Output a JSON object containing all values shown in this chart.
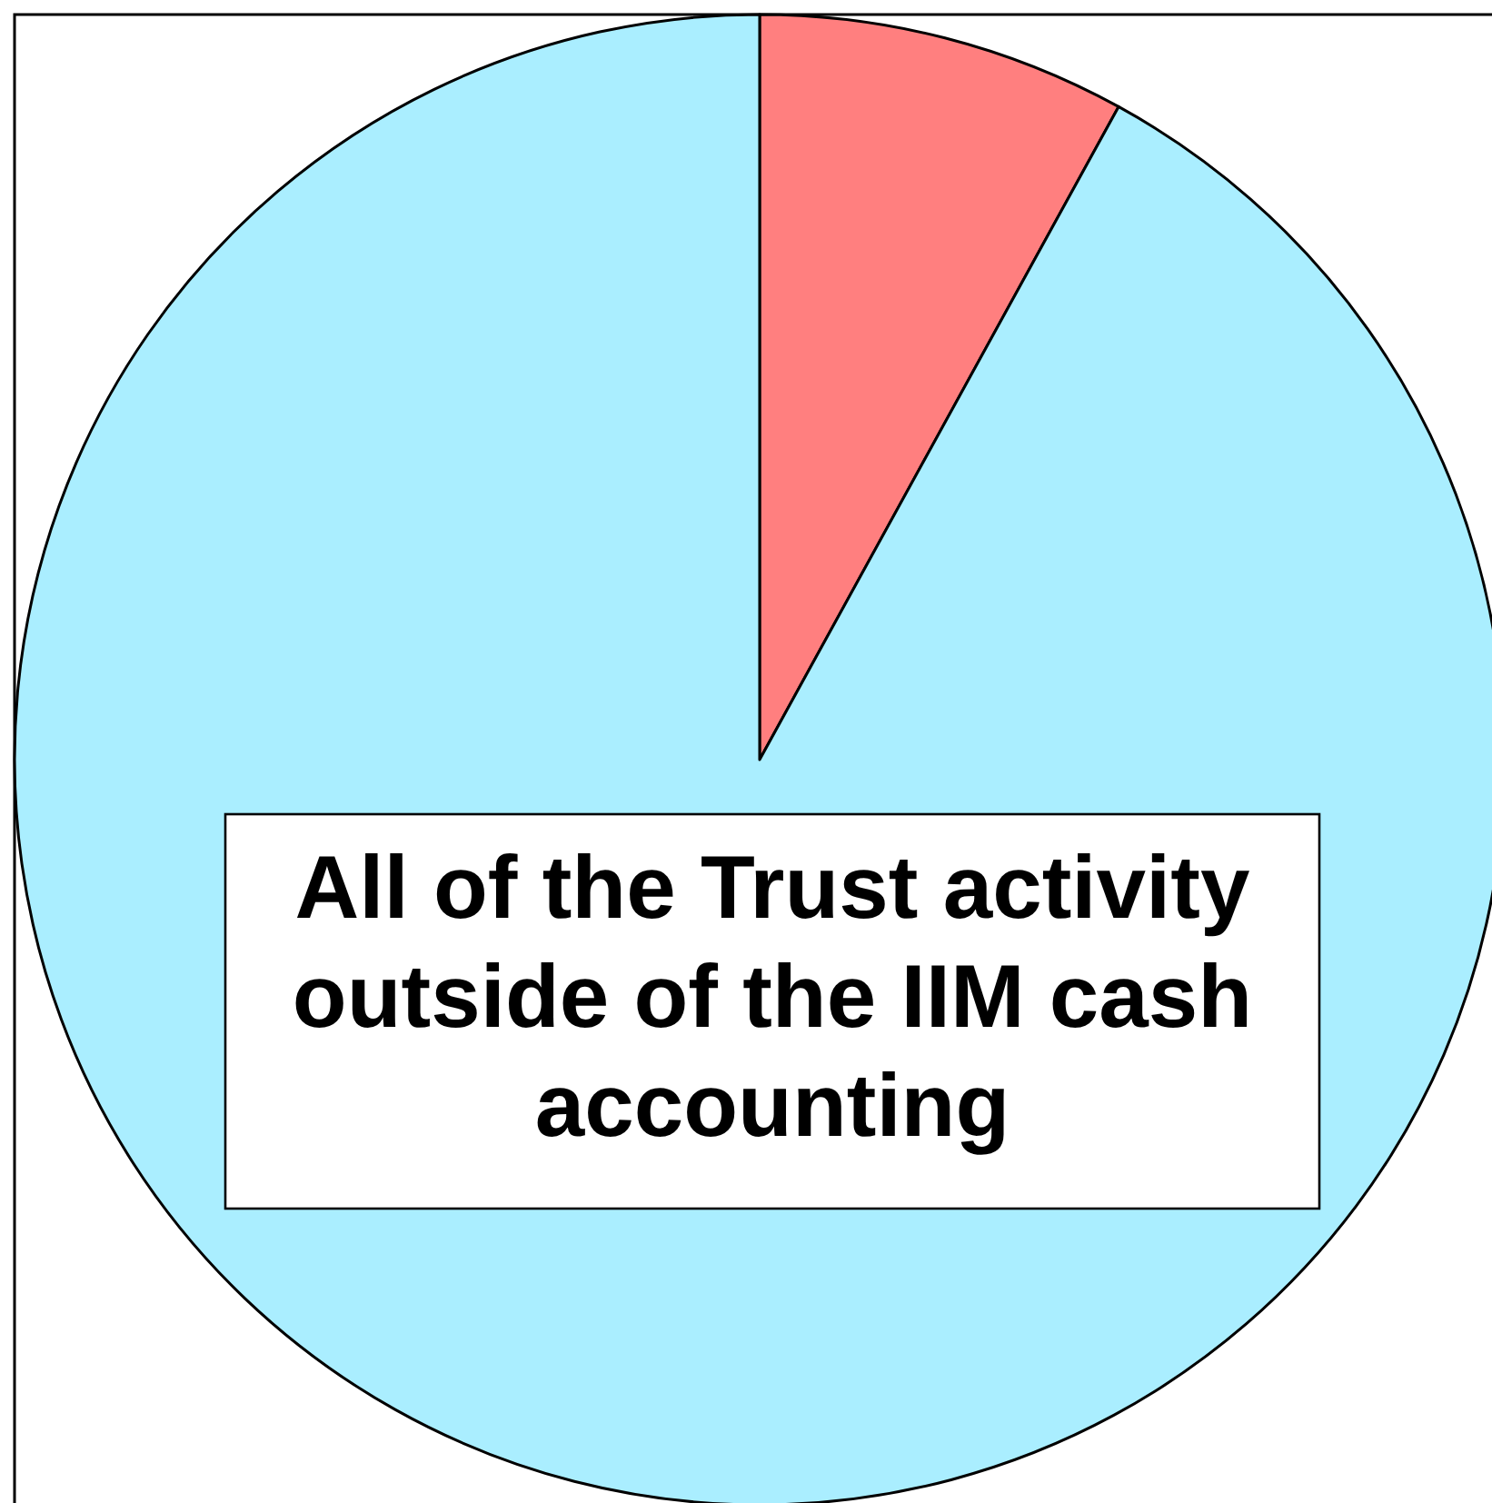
{
  "chart_data": {
    "type": "pie",
    "categories": [
      null,
      "All of the Trust activity outside of the IIM cash accounting"
    ],
    "values": [
      8,
      92
    ],
    "colors": [
      "#ff7f7f",
      "#aaeeff"
    ]
  }
}
